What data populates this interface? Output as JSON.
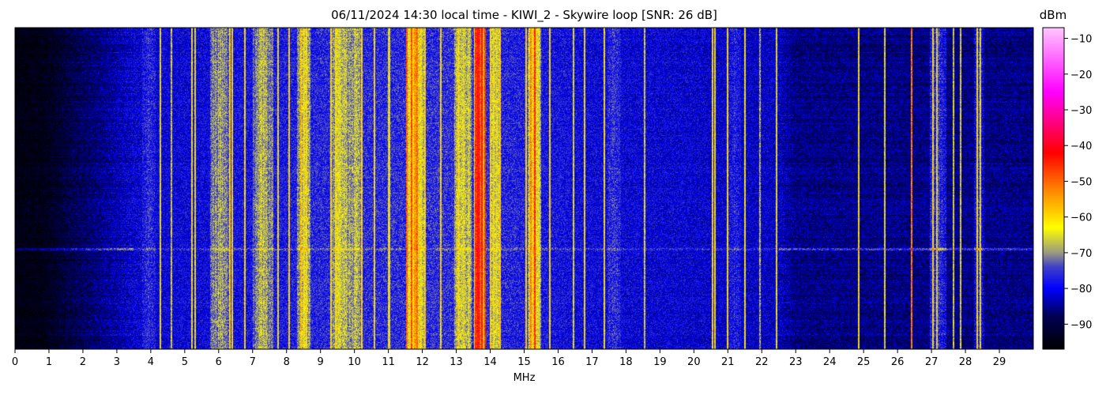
{
  "chart_data": {
    "type": "heatmap",
    "title": "06/11/2024 14:30 local time - KIWI_2 - Skywire loop [SNR: 26 dB]",
    "xlabel": "MHz",
    "ylabel": "",
    "xlim": [
      0,
      30
    ],
    "x_ticks": [
      0,
      1,
      2,
      3,
      4,
      5,
      6,
      7,
      8,
      9,
      10,
      11,
      12,
      13,
      14,
      15,
      16,
      17,
      18,
      19,
      20,
      21,
      22,
      23,
      24,
      25,
      26,
      27,
      28,
      29
    ],
    "colorbar": {
      "label": "dBm",
      "range": [
        -97,
        -7
      ],
      "ticks": [
        -10,
        -20,
        -30,
        -40,
        -50,
        -60,
        -70,
        -80,
        -90
      ],
      "colormap": [
        {
          "v": -97,
          "color": "#000000"
        },
        {
          "v": -88,
          "color": "#000050"
        },
        {
          "v": -80,
          "color": "#0000ff"
        },
        {
          "v": -74,
          "color": "#4040c8"
        },
        {
          "v": -70,
          "color": "#9a9a80"
        },
        {
          "v": -63,
          "color": "#ffff00"
        },
        {
          "v": -52,
          "color": "#ff8000"
        },
        {
          "v": -42,
          "color": "#ff0000"
        },
        {
          "v": -25,
          "color": "#ff00ff"
        },
        {
          "v": -7,
          "color": "#ffc8ff"
        }
      ]
    },
    "floor_profile": [
      {
        "mhz": 0,
        "dbm": -96
      },
      {
        "mhz": 0.8,
        "dbm": -95
      },
      {
        "mhz": 1.6,
        "dbm": -90
      },
      {
        "mhz": 2.5,
        "dbm": -86
      },
      {
        "mhz": 3.5,
        "dbm": -81
      },
      {
        "mhz": 5.5,
        "dbm": -80
      },
      {
        "mhz": 9.0,
        "dbm": -77
      },
      {
        "mhz": 13.5,
        "dbm": -76
      },
      {
        "mhz": 17.0,
        "dbm": -80
      },
      {
        "mhz": 22.5,
        "dbm": -82
      },
      {
        "mhz": 23.0,
        "dbm": -86
      },
      {
        "mhz": 30,
        "dbm": -86
      }
    ],
    "broadcast_bands": [
      {
        "mhz": 3.95,
        "width": 0.4,
        "dbm": -75
      },
      {
        "mhz": 6.05,
        "width": 0.6,
        "dbm": -65
      },
      {
        "mhz": 7.3,
        "width": 0.6,
        "dbm": -64
      },
      {
        "mhz": 8.5,
        "width": 0.4,
        "dbm": -62
      },
      {
        "mhz": 9.6,
        "width": 0.6,
        "dbm": -62
      },
      {
        "mhz": 10.05,
        "width": 0.3,
        "dbm": -63
      },
      {
        "mhz": 11.8,
        "width": 0.5,
        "dbm": -52
      },
      {
        "mhz": 13.2,
        "width": 0.5,
        "dbm": -60
      },
      {
        "mhz": 13.7,
        "width": 0.35,
        "dbm": -42
      },
      {
        "mhz": 14.15,
        "width": 0.25,
        "dbm": -58
      },
      {
        "mhz": 15.3,
        "width": 0.4,
        "dbm": -55
      },
      {
        "mhz": 17.65,
        "width": 0.4,
        "dbm": -74
      },
      {
        "mhz": 21.2,
        "width": 0.4,
        "dbm": -76
      },
      {
        "mhz": 27.2,
        "width": 0.5,
        "dbm": -70
      },
      {
        "mhz": 28.4,
        "width": 0.3,
        "dbm": -72
      }
    ],
    "carriers": [
      {
        "mhz": 4.28,
        "dbm": -62
      },
      {
        "mhz": 4.6,
        "dbm": -66
      },
      {
        "mhz": 5.22,
        "dbm": -62
      },
      {
        "mhz": 5.3,
        "dbm": -64
      },
      {
        "mhz": 6.32,
        "dbm": -60
      },
      {
        "mhz": 6.4,
        "dbm": -61
      },
      {
        "mhz": 6.78,
        "dbm": -60
      },
      {
        "mhz": 7.75,
        "dbm": -63
      },
      {
        "mhz": 8.07,
        "dbm": -60
      },
      {
        "mhz": 8.42,
        "dbm": -58
      },
      {
        "mhz": 8.58,
        "dbm": -60
      },
      {
        "mhz": 9.32,
        "dbm": -61
      },
      {
        "mhz": 9.45,
        "dbm": -62
      },
      {
        "mhz": 10.22,
        "dbm": -61
      },
      {
        "mhz": 10.58,
        "dbm": -62
      },
      {
        "mhz": 11.02,
        "dbm": -64
      },
      {
        "mhz": 11.55,
        "dbm": -50
      },
      {
        "mhz": 11.68,
        "dbm": -48
      },
      {
        "mhz": 11.85,
        "dbm": -50
      },
      {
        "mhz": 12.07,
        "dbm": -60
      },
      {
        "mhz": 12.55,
        "dbm": -60
      },
      {
        "mhz": 13.05,
        "dbm": -60
      },
      {
        "mhz": 13.58,
        "dbm": -45
      },
      {
        "mhz": 13.65,
        "dbm": -42
      },
      {
        "mhz": 13.75,
        "dbm": -42
      },
      {
        "mhz": 13.85,
        "dbm": -45
      },
      {
        "mhz": 14.0,
        "dbm": -60
      },
      {
        "mhz": 14.3,
        "dbm": -58
      },
      {
        "mhz": 15.05,
        "dbm": -60
      },
      {
        "mhz": 15.2,
        "dbm": -52
      },
      {
        "mhz": 15.32,
        "dbm": -45
      },
      {
        "mhz": 15.75,
        "dbm": -62
      },
      {
        "mhz": 16.45,
        "dbm": -63
      },
      {
        "mhz": 16.78,
        "dbm": -62
      },
      {
        "mhz": 17.36,
        "dbm": -62
      },
      {
        "mhz": 18.55,
        "dbm": -66
      },
      {
        "mhz": 20.55,
        "dbm": -60
      },
      {
        "mhz": 20.62,
        "dbm": -62
      },
      {
        "mhz": 21.0,
        "dbm": -62
      },
      {
        "mhz": 21.5,
        "dbm": -62
      },
      {
        "mhz": 21.95,
        "dbm": -68
      },
      {
        "mhz": 22.43,
        "dbm": -64
      },
      {
        "mhz": 24.85,
        "dbm": -62
      },
      {
        "mhz": 25.62,
        "dbm": -64
      },
      {
        "mhz": 26.42,
        "dbm": -52
      },
      {
        "mhz": 27.05,
        "dbm": -62
      },
      {
        "mhz": 27.15,
        "dbm": -64
      },
      {
        "mhz": 27.65,
        "dbm": -66
      },
      {
        "mhz": 27.85,
        "dbm": -66
      },
      {
        "mhz": 28.35,
        "dbm": -62
      },
      {
        "mhz": 28.45,
        "dbm": -64
      }
    ]
  }
}
